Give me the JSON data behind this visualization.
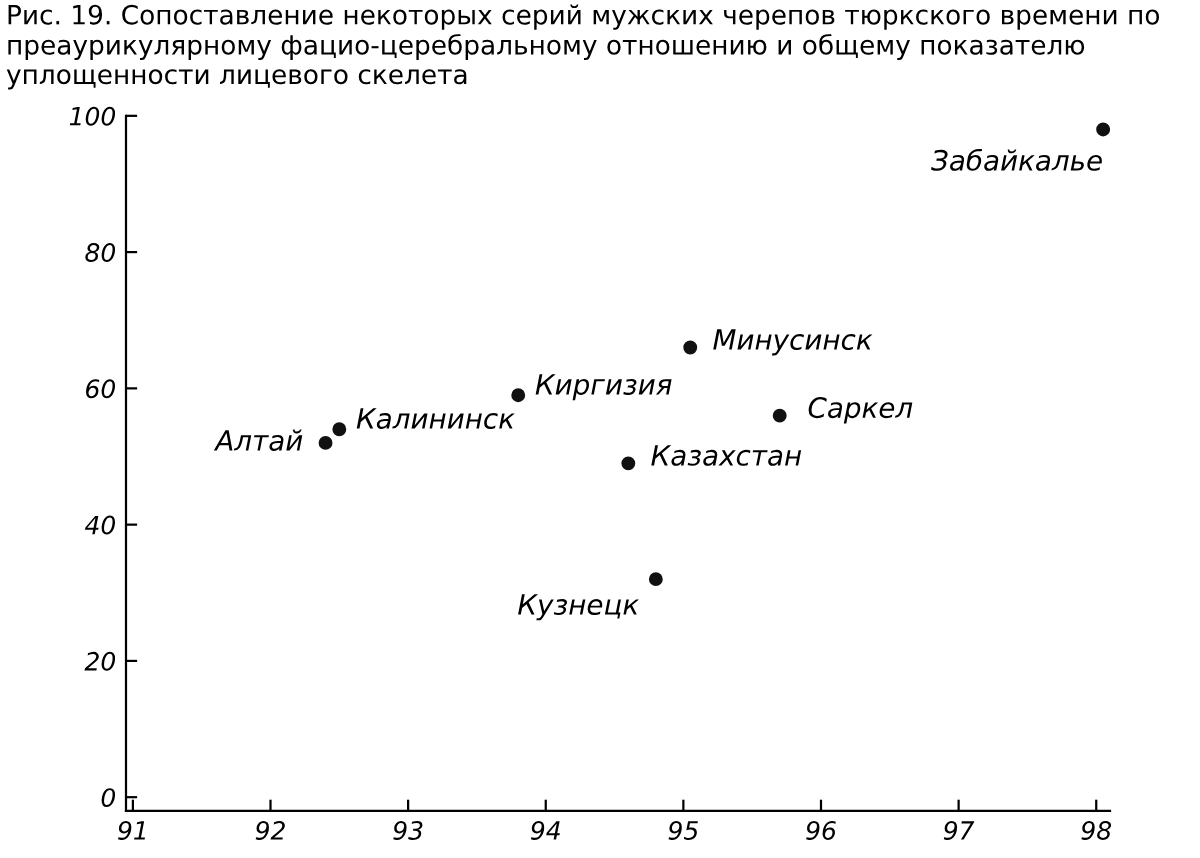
{
  "chart_data": {
    "type": "scatter",
    "title": "Рис. 19. Сопоставление некоторых серий мужских черепов тюркского времени по преаурикулярному фацио-церебральному отношению и общему показателю уплощенности лицевого скелета",
    "x": [
      92.4,
      92.5,
      93.8,
      95.05,
      95.7,
      94.6,
      94.8,
      98.05
    ],
    "series": [
      {
        "color": "#111111",
        "values": [
          52,
          54,
          59,
          66,
          56,
          49,
          32,
          98
        ]
      }
    ],
    "annotations": [
      {
        "text": "Алтай",
        "x": 92.4,
        "y": 52
      },
      {
        "text": "Калининск",
        "x": 92.5,
        "y": 54
      },
      {
        "text": "Киргизия",
        "x": 93.8,
        "y": 59
      },
      {
        "text": "Минусинск",
        "x": 95.05,
        "y": 66
      },
      {
        "text": "Саркел",
        "x": 95.7,
        "y": 56
      },
      {
        "text": "Казахстан",
        "x": 94.6,
        "y": 49
      },
      {
        "text": "Кузнецк",
        "x": 94.8,
        "y": 32
      },
      {
        "text": "Забайкалье",
        "x": 98.05,
        "y": 98
      }
    ],
    "xlim": [
      90.95,
      98.1
    ],
    "xticks": [
      91,
      92,
      93,
      94,
      95,
      96,
      97,
      98
    ],
    "ylim": [
      -2,
      100
    ],
    "yticks": [
      0,
      20,
      40,
      60,
      80,
      100
    ],
    "marker": "circle",
    "grid": false,
    "legend": false
  }
}
